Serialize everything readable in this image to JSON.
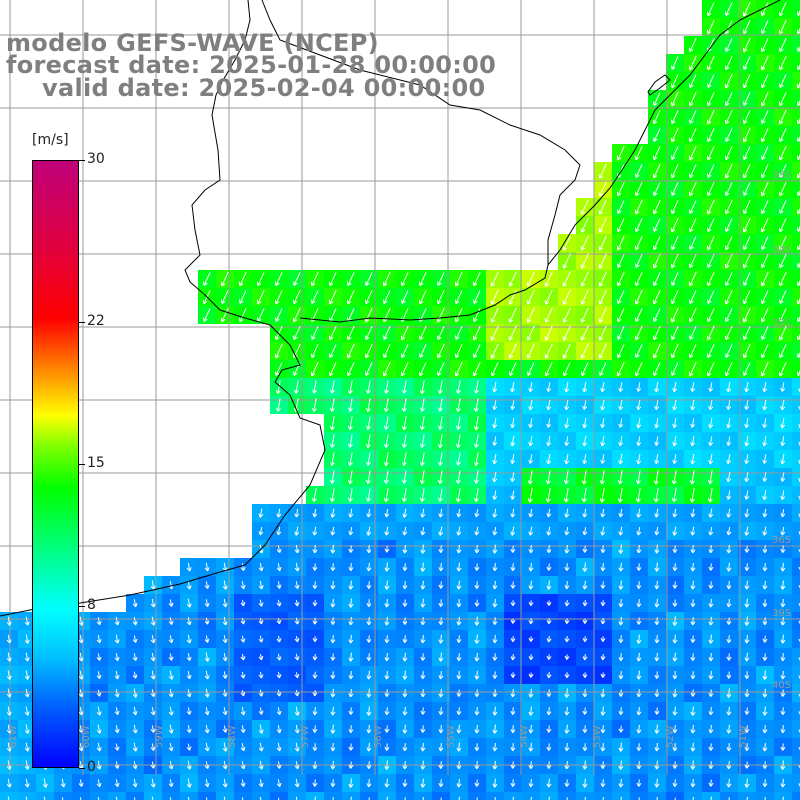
{
  "title": {
    "line1": "modelo GEFS-WAVE (NCEP)",
    "line2": "forecast date: 2025-01-28 00:00:00",
    "line3": "valid date: 2025-02-04 00:00:00"
  },
  "colorbar": {
    "unit": "[m/s]",
    "ticks": [
      {
        "label": "30",
        "value": 30
      },
      {
        "label": "22",
        "value": 22
      },
      {
        "label": "15",
        "value": 15
      },
      {
        "label": "8",
        "value": 8
      },
      {
        "label": "0",
        "value": 0
      }
    ],
    "colors": [
      "#0000ff",
      "#00bfff",
      "#00ffff",
      "#00ff00",
      "#ffff00",
      "#ff8000",
      "#ff0000",
      "#c0007a"
    ]
  },
  "map": {
    "lat_labels": [
      "33S",
      "34S",
      "35S",
      "36S",
      "39S",
      "40S"
    ],
    "lon_labels": [
      "61W",
      "60W",
      "59W",
      "58W",
      "57W",
      "56W",
      "55W",
      "54W",
      "53W",
      "52W",
      "51W"
    ]
  }
}
